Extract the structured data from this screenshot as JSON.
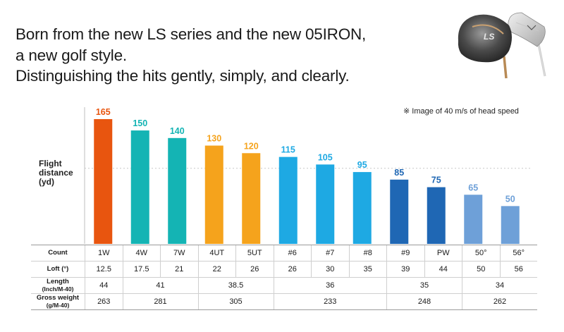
{
  "headline": [
    "Born from the new LS series and the new 05IRON,",
    "a new golf style.",
    "Distinguishing the hits gently, simply, and clearly."
  ],
  "note": "※ Image of 40 m/s of head speed",
  "yaxis_label": [
    "Flight",
    "distance",
    "(yd)"
  ],
  "chart_data": {
    "type": "bar",
    "ylabel": "Flight distance (yd)",
    "categories": [
      "1W",
      "4W",
      "7W",
      "4UT",
      "5UT",
      "#6",
      "#7",
      "#8",
      "#9",
      "PW",
      "50°",
      "56°"
    ],
    "values": [
      165,
      150,
      140,
      130,
      120,
      115,
      105,
      95,
      85,
      75,
      65,
      50
    ],
    "bar_colors": [
      "#e8550f",
      "#14b4b4",
      "#14b4b4",
      "#f5a31c",
      "#f5a31c",
      "#1ea9e3",
      "#1ea9e3",
      "#1ea9e3",
      "#1f67b4",
      "#1f67b4",
      "#6ea0d8",
      "#6ea0d8"
    ],
    "ylim": [
      0,
      180
    ],
    "reference_line": 100,
    "grid": false
  },
  "table": {
    "count": {
      "label": "Count",
      "values": [
        "1W",
        "4W",
        "7W",
        "4UT",
        "5UT",
        "#6",
        "#7",
        "#8",
        "#9",
        "PW",
        "50°",
        "56°"
      ]
    },
    "loft": {
      "label": "Loft (°)",
      "values": [
        "12.5",
        "17.5",
        "21",
        "22",
        "26",
        "26",
        "30",
        "35",
        "39",
        "44",
        "50",
        "56"
      ]
    },
    "length": {
      "label": "Length",
      "unit": "(Inch/M-40)",
      "groups": [
        {
          "value": "44",
          "span": 1
        },
        {
          "value": "41",
          "span": 2
        },
        {
          "value": "38.5",
          "span": 2
        },
        {
          "value": "36",
          "span": 3
        },
        {
          "value": "35",
          "span": 2
        },
        {
          "value": "34",
          "span": 2
        }
      ]
    },
    "weight": {
      "label": "Gross weight",
      "unit": "(g/M-40)",
      "groups": [
        {
          "value": "263",
          "span": 1
        },
        {
          "value": "281",
          "span": 2
        },
        {
          "value": "305",
          "span": 2
        },
        {
          "value": "233",
          "span": 3
        },
        {
          "value": "248",
          "span": 2
        },
        {
          "value": "262",
          "span": 2
        }
      ]
    }
  }
}
